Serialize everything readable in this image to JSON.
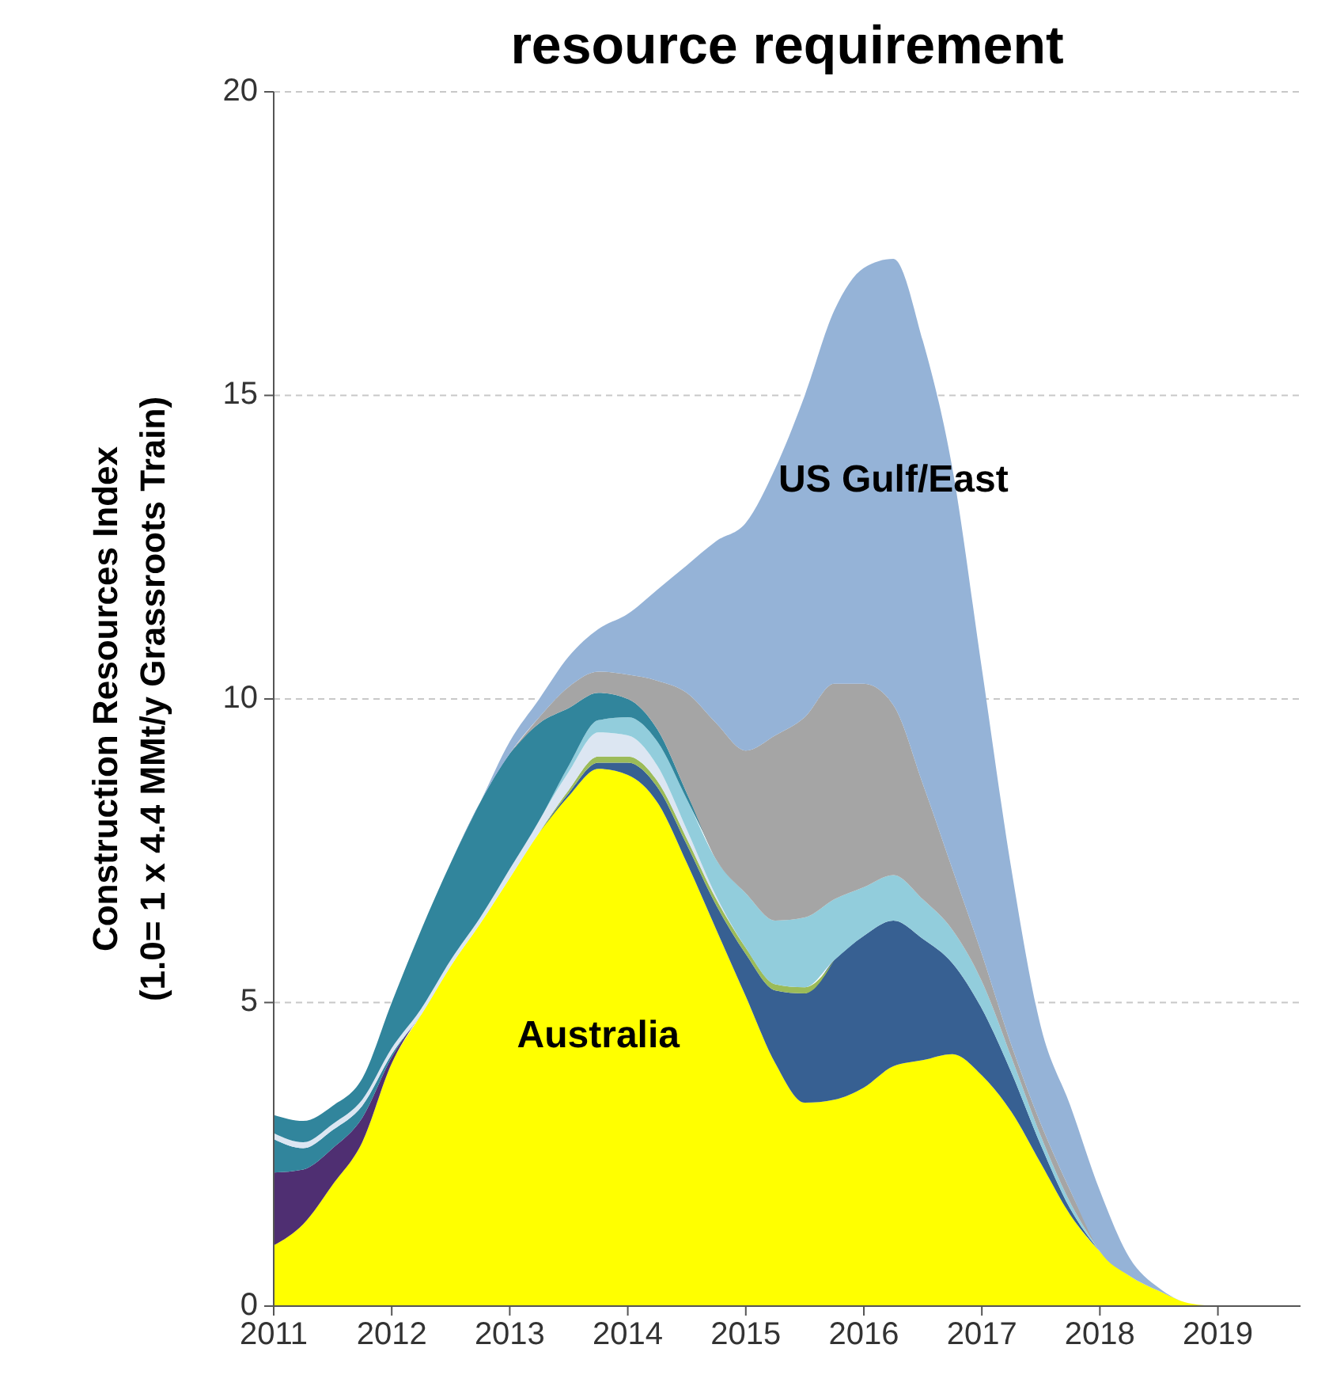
{
  "chart_data": {
    "type": "area",
    "stacked": true,
    "title": "resource requirement",
    "ylabel": "Construction Resources Index\n(1.0= 1 x 4.4 MMt/y Grassroots Train)",
    "x": [
      2011,
      2011.25,
      2011.5,
      2011.75,
      2012,
      2012.25,
      2012.5,
      2012.75,
      2013,
      2013.25,
      2013.5,
      2013.75,
      2014,
      2014.25,
      2014.5,
      2014.75,
      2015,
      2015.25,
      2015.5,
      2015.75,
      2016,
      2016.25,
      2016.5,
      2016.75,
      2017,
      2017.25,
      2017.5,
      2017.75,
      2018,
      2018.25,
      2018.5,
      2018.75,
      2019
    ],
    "xlim": [
      2011,
      2019.7
    ],
    "xticks": [
      2011,
      2012,
      2013,
      2014,
      2015,
      2016,
      2017,
      2018,
      2019
    ],
    "ylim": [
      0,
      20
    ],
    "yticks": [
      0,
      5,
      10,
      15,
      20
    ],
    "grid": "y",
    "legend": false,
    "series": [
      {
        "name": "Australia",
        "color": "#ffff00",
        "values": [
          1.0,
          1.35,
          2.0,
          2.7,
          4.0,
          4.8,
          5.6,
          6.3,
          7.05,
          7.8,
          8.4,
          8.85,
          8.75,
          8.3,
          7.3,
          6.2,
          5.1,
          4.0,
          3.35,
          3.4,
          3.6,
          3.95,
          4.05,
          4.15,
          3.8,
          3.2,
          2.35,
          1.5,
          0.9,
          0.5,
          0.25,
          0.05,
          0
        ]
      },
      {
        "color": "#4f2f72",
        "values": [
          1.2,
          0.9,
          0.6,
          0.4,
          0.1,
          0,
          null,
          null,
          null,
          null,
          null,
          null,
          null,
          null,
          null,
          null,
          null,
          null,
          null,
          null,
          null,
          null,
          null,
          null,
          null,
          null,
          null,
          null,
          null,
          null,
          null,
          null,
          null
        ]
      },
      {
        "color": "#376092",
        "values": [
          null,
          null,
          null,
          null,
          null,
          null,
          null,
          null,
          null,
          0,
          0.05,
          0.1,
          0.2,
          0.25,
          0.3,
          0.4,
          0.7,
          1.2,
          1.8,
          2.3,
          2.5,
          2.4,
          2.0,
          1.5,
          1.1,
          0.65,
          0.3,
          0.1,
          0,
          null,
          null,
          null,
          null
        ]
      },
      {
        "color": "#9bbb59",
        "values": [
          null,
          null,
          null,
          null,
          null,
          null,
          null,
          null,
          null,
          0,
          0.05,
          0.1,
          0.1,
          0.1,
          0.1,
          0.1,
          0.1,
          0.1,
          0.1,
          0,
          null,
          null,
          null,
          null,
          null,
          null,
          null,
          null,
          null,
          null,
          null,
          null,
          null
        ]
      },
      {
        "color": "#31859c",
        "values": [
          0.55,
          0.35,
          0.3,
          0.2,
          0.05,
          0,
          null,
          null,
          null,
          null,
          null,
          null,
          null,
          null,
          null,
          null,
          null,
          null,
          null,
          null,
          null,
          null,
          null,
          null,
          null,
          null,
          null,
          null,
          null,
          null,
          null,
          null,
          null
        ]
      },
      {
        "color": "#dce6f2",
        "values": [
          0.1,
          0.1,
          0.1,
          0.1,
          0.1,
          0.1,
          0.1,
          0.1,
          0.15,
          0.2,
          0.3,
          0.4,
          0.35,
          0.25,
          0.15,
          0.05,
          0,
          null,
          null,
          null,
          null,
          null,
          null,
          null,
          null,
          null,
          null,
          null,
          null,
          null,
          null,
          null,
          null
        ]
      },
      {
        "color": "#92cddc",
        "values": [
          null,
          null,
          null,
          null,
          null,
          null,
          null,
          null,
          null,
          0,
          0.1,
          0.2,
          0.3,
          0.4,
          0.5,
          0.6,
          0.9,
          1.05,
          1.15,
          1.0,
          0.8,
          0.75,
          0.65,
          0.55,
          0.45,
          0.25,
          0.15,
          0.1,
          0,
          null,
          null,
          null,
          null
        ]
      },
      {
        "color": "#31859c",
        "values": [
          0.3,
          0.35,
          0.3,
          0.35,
          0.75,
          1.3,
          1.6,
          1.9,
          1.9,
          1.6,
          0.95,
          0.45,
          0.3,
          0.2,
          0.1,
          0,
          null,
          null,
          null,
          null,
          null,
          null,
          null,
          null,
          null,
          null,
          null,
          null,
          null,
          null,
          null,
          null,
          null
        ]
      },
      {
        "color": "#a5a5a5",
        "values": [
          null,
          null,
          null,
          null,
          null,
          null,
          null,
          null,
          0,
          0.1,
          0.35,
          0.35,
          0.4,
          0.8,
          1.65,
          2.25,
          2.35,
          3.05,
          3.3,
          3.55,
          3.35,
          2.8,
          1.9,
          1.0,
          0.45,
          0.2,
          0.2,
          0.2,
          0,
          null,
          null,
          null,
          null
        ]
      },
      {
        "name": "US Gulf/East",
        "color": "#95b3d7",
        "values": [
          0,
          0,
          0,
          0,
          0,
          0,
          0,
          0,
          0.2,
          0.3,
          0.5,
          0.7,
          1.0,
          1.5,
          2.1,
          3.0,
          3.75,
          4.4,
          5.3,
          6.15,
          6.85,
          7.35,
          7.3,
          6.6,
          4.7,
          2.9,
          1.6,
          1.4,
          1.0,
          0.3,
          0.05,
          0,
          0
        ]
      }
    ]
  }
}
